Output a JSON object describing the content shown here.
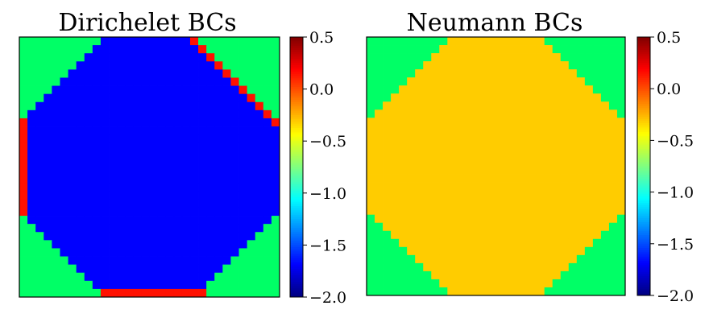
{
  "chart_data": [
    {
      "type": "heatmap",
      "title": "Dirichelet BCs",
      "grid_size": 32,
      "colormap": "jet",
      "vmin": -2.0,
      "vmax": 0.5,
      "colorbar_ticks": [
        "0.5",
        "0.0",
        "−0.5",
        "−1.0",
        "−1.5",
        "−2.0"
      ],
      "colorbar_tick_values": [
        0.5,
        0.0,
        -0.5,
        -1.0,
        -1.5,
        -2.0
      ],
      "region_values": {
        "corner": -1.0,
        "interior": -2.0,
        "boundary": 0.5
      },
      "boundary_stripes": [
        "left edge (rows 10-21)",
        "bottom edge (cols 10-22)",
        "upper-right diagonal"
      ],
      "colors": {
        "corner": "#00ff66",
        "interior": "#0000ff",
        "boundary": "#ff1100"
      }
    },
    {
      "type": "heatmap",
      "title": "Neumann BCs",
      "grid_size": 32,
      "colormap": "jet",
      "vmin": -2.0,
      "vmax": 0.5,
      "colorbar_ticks": [
        "0.5",
        "0.0",
        "−0.5",
        "−1.0",
        "−1.5",
        "−2.0"
      ],
      "colorbar_tick_values": [
        0.5,
        0.0,
        -0.5,
        -1.0,
        -1.5,
        -2.0
      ],
      "region_values": {
        "corner": -1.0,
        "interior": 0.0
      },
      "colors": {
        "corner": "#00ff66",
        "interior": "#ffcc00"
      }
    }
  ]
}
